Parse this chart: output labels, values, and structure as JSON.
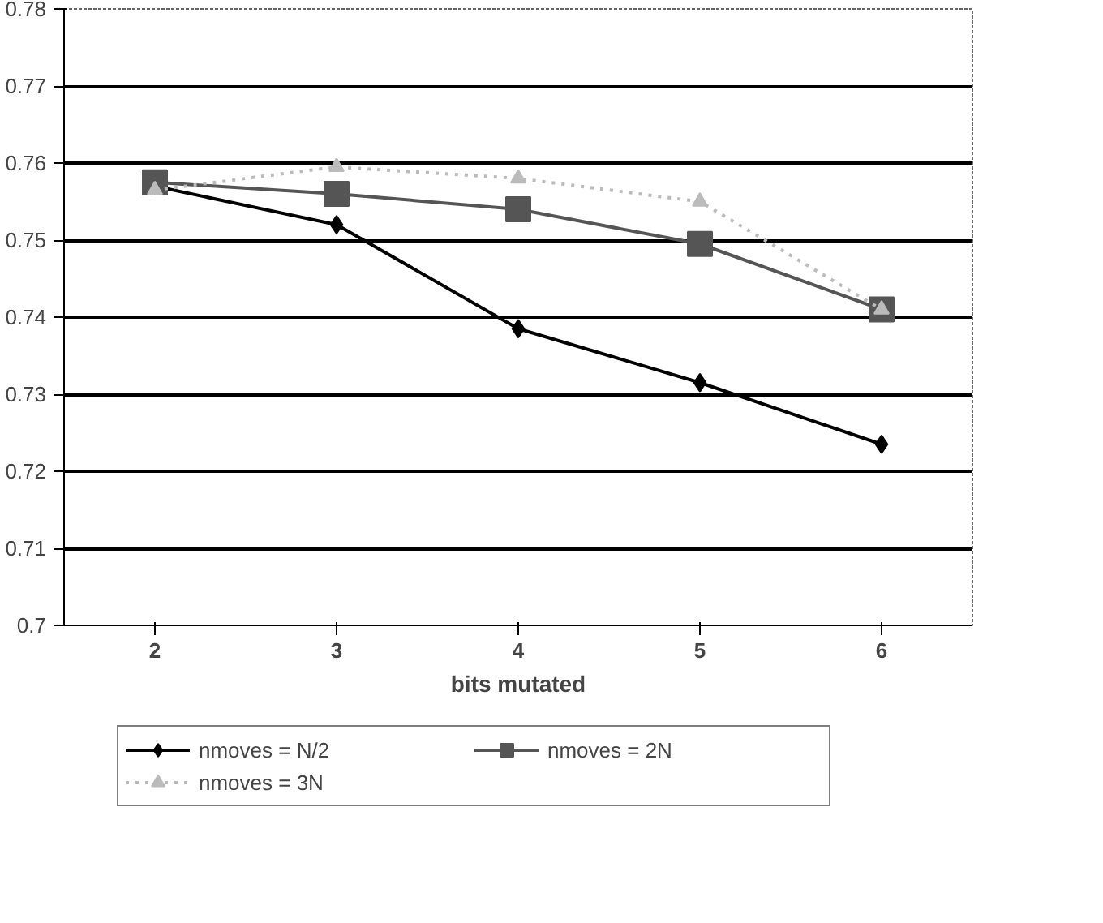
{
  "chart_data": {
    "type": "line",
    "xlabel": "bits mutated",
    "categories": [
      "2",
      "3",
      "4",
      "5",
      "6"
    ],
    "ylim": [
      0.7,
      0.78
    ],
    "yticks": [
      0.7,
      0.71,
      0.72,
      0.73,
      0.74,
      0.75,
      0.76,
      0.77,
      0.78
    ],
    "grid": "y",
    "legend": "bottom",
    "series": [
      {
        "name": "nmoves = N/2",
        "color": "#000000",
        "marker": "diamond",
        "line_style": "solid",
        "values": [
          0.757,
          0.752,
          0.7385,
          0.7315,
          0.7235
        ]
      },
      {
        "name": "nmoves = 2N",
        "color": "#555555",
        "marker": "square",
        "line_style": "solid",
        "values": [
          0.7575,
          0.756,
          0.754,
          0.7495,
          0.741
        ]
      },
      {
        "name": "nmoves = 3N",
        "color": "#bbbbbb",
        "marker": "triangle",
        "line_style": "dotted",
        "values": [
          0.7565,
          0.7595,
          0.758,
          0.755,
          0.741
        ]
      }
    ]
  }
}
